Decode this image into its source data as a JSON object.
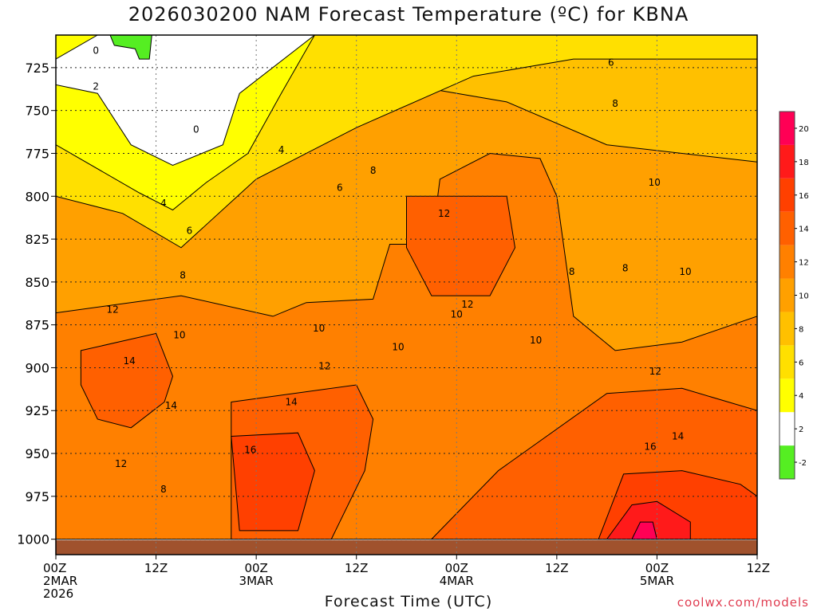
{
  "title": "2026030200 NAM Forecast Temperature (ºC) for KBNA",
  "xlabel": "Forecast Time (UTC)",
  "credit": "coolwx.com/models",
  "chart_data": {
    "type": "heatmap",
    "title": "2026030200 NAM Forecast Temperature (ºC) for KBNA",
    "xlabel": "Forecast Time (UTC)",
    "ylabel": "",
    "y_axis": {
      "ticks": [
        725,
        750,
        775,
        800,
        825,
        850,
        875,
        900,
        925,
        950,
        975,
        1000
      ],
      "range": [
        706,
        1009
      ],
      "inverted": true,
      "grid": true
    },
    "x_axis": {
      "ticks": [
        {
          "hour": 0,
          "lines": [
            "00Z",
            "2MAR",
            "2026"
          ]
        },
        {
          "hour": 12,
          "lines": [
            "12Z"
          ]
        },
        {
          "hour": 24,
          "lines": [
            "00Z",
            "3MAR"
          ]
        },
        {
          "hour": 36,
          "lines": [
            "12Z"
          ]
        },
        {
          "hour": 48,
          "lines": [
            "00Z",
            "4MAR"
          ]
        },
        {
          "hour": 60,
          "lines": [
            "12Z"
          ]
        },
        {
          "hour": 72,
          "lines": [
            "00Z",
            "5MAR"
          ]
        },
        {
          "hour": 84,
          "lines": [
            "12Z"
          ]
        }
      ],
      "range": [
        0,
        84
      ],
      "grid": true
    },
    "colorbar": {
      "levels": [
        -2,
        2,
        4,
        6,
        8,
        10,
        12,
        14,
        16,
        18,
        20
      ],
      "colors": [
        "#55ee22",
        "#ffffff",
        "#ffff00",
        "#ffe000",
        "#ffc000",
        "#ffa000",
        "#ff8000",
        "#ff6000",
        "#ff4000",
        "#ff1a1a",
        "#ff0055"
      ]
    },
    "regions": [
      {
        "value": 10,
        "color": "#ffa000",
        "points": [
          [
            0,
            706
          ],
          [
            84,
            706
          ],
          [
            84,
            1000
          ],
          [
            0,
            1000
          ]
        ]
      },
      {
        "value": 8,
        "color": "#ffc000",
        "points": [
          [
            0,
            706
          ],
          [
            28,
            706
          ],
          [
            42,
            735
          ],
          [
            54,
            745
          ],
          [
            66,
            770
          ],
          [
            84,
            780
          ],
          [
            84,
            706
          ]
        ]
      },
      {
        "value": 6,
        "color": "#ffe000",
        "points": [
          [
            0,
            706
          ],
          [
            84,
            706
          ],
          [
            84,
            720
          ],
          [
            62,
            720
          ],
          [
            50,
            730
          ],
          [
            36,
            760
          ],
          [
            24,
            790
          ],
          [
            15,
            830
          ],
          [
            8,
            810
          ],
          [
            0,
            800
          ]
        ]
      },
      {
        "value": 4,
        "color": "#ffff00",
        "points": [
          [
            0,
            706
          ],
          [
            31,
            706
          ],
          [
            27,
            740
          ],
          [
            23,
            775
          ],
          [
            18,
            792
          ],
          [
            14,
            808
          ],
          [
            10,
            798
          ],
          [
            0,
            770
          ]
        ]
      },
      {
        "value": 2,
        "color": "#ffffff",
        "points": [
          [
            5,
            706
          ],
          [
            31,
            706
          ],
          [
            22,
            740
          ],
          [
            20,
            770
          ],
          [
            14,
            782
          ],
          [
            9,
            770
          ],
          [
            5,
            740
          ],
          [
            0,
            735
          ],
          [
            0,
            720
          ]
        ]
      },
      {
        "value": -2,
        "color": "#55ee22",
        "points": [
          [
            6.5,
            706
          ],
          [
            11.5,
            706
          ],
          [
            11.2,
            720
          ],
          [
            10,
            720
          ],
          [
            9.5,
            714
          ],
          [
            7,
            712
          ]
        ]
      },
      {
        "value": 12,
        "color": "#ff8000",
        "points": [
          [
            0,
            868
          ],
          [
            15,
            858
          ],
          [
            26,
            870
          ],
          [
            30,
            862
          ],
          [
            38,
            860
          ],
          [
            40,
            828
          ],
          [
            45,
            828
          ],
          [
            46,
            790
          ],
          [
            52,
            775
          ],
          [
            58,
            778
          ],
          [
            60,
            800
          ],
          [
            62,
            870
          ],
          [
            67,
            890
          ],
          [
            75,
            885
          ],
          [
            84,
            870
          ],
          [
            84,
            1000
          ],
          [
            0,
            1000
          ]
        ]
      },
      {
        "value": 14,
        "color": "#ff6000",
        "points": [
          [
            3,
            890
          ],
          [
            12,
            880
          ],
          [
            14,
            905
          ],
          [
            13,
            920
          ],
          [
            9,
            935
          ],
          [
            5,
            930
          ],
          [
            3,
            910
          ]
        ]
      },
      {
        "value": 14,
        "color": "#ff6000",
        "points": [
          [
            21,
            920
          ],
          [
            36,
            910
          ],
          [
            38,
            930
          ],
          [
            37,
            960
          ],
          [
            33,
            1000
          ],
          [
            21,
            1000
          ]
        ]
      },
      {
        "value": 14,
        "color": "#ff6000",
        "points": [
          [
            45,
            1000
          ],
          [
            53,
            960
          ],
          [
            66,
            915
          ],
          [
            75,
            912
          ],
          [
            84,
            925
          ],
          [
            84,
            1000
          ]
        ]
      },
      {
        "value": 14,
        "color": "#ff6000",
        "points": [
          [
            42,
            800
          ],
          [
            54,
            800
          ],
          [
            55,
            830
          ],
          [
            52,
            858
          ],
          [
            45,
            858
          ],
          [
            42,
            830
          ]
        ]
      },
      {
        "value": 16,
        "color": "#ff4000",
        "points": [
          [
            21,
            940
          ],
          [
            29,
            938
          ],
          [
            31,
            960
          ],
          [
            29,
            995
          ],
          [
            22,
            995
          ]
        ]
      },
      {
        "value": 16,
        "color": "#ff4000",
        "points": [
          [
            65,
            1000
          ],
          [
            68,
            962
          ],
          [
            75,
            960
          ],
          [
            82,
            968
          ],
          [
            84,
            975
          ],
          [
            84,
            1000
          ]
        ]
      },
      {
        "value": 18,
        "color": "#ff1a1a",
        "points": [
          [
            66,
            1000
          ],
          [
            69,
            980
          ],
          [
            72,
            978
          ],
          [
            76,
            990
          ],
          [
            76,
            1000
          ]
        ]
      },
      {
        "value": 20,
        "color": "#ff0055",
        "points": [
          [
            69,
            1000
          ],
          [
            70,
            990
          ],
          [
            71.5,
            990
          ],
          [
            72,
            1000
          ]
        ]
      }
    ],
    "contour_labels": [
      {
        "x": 4.8,
        "y": 715,
        "text": "0"
      },
      {
        "x": 16.8,
        "y": 761,
        "text": "0"
      },
      {
        "x": 4.8,
        "y": 736,
        "text": "2"
      },
      {
        "x": 27,
        "y": 773,
        "text": "4"
      },
      {
        "x": 12.9,
        "y": 804,
        "text": "4"
      },
      {
        "x": 16,
        "y": 820,
        "text": "6"
      },
      {
        "x": 34,
        "y": 795,
        "text": "6"
      },
      {
        "x": 15.2,
        "y": 846,
        "text": "8"
      },
      {
        "x": 38,
        "y": 785,
        "text": "8"
      },
      {
        "x": 67,
        "y": 746,
        "text": "8"
      },
      {
        "x": 61.8,
        "y": 844,
        "text": "8"
      },
      {
        "x": 68.2,
        "y": 842,
        "text": "8"
      },
      {
        "x": 66.5,
        "y": 722,
        "text": "6"
      },
      {
        "x": 14.8,
        "y": 881,
        "text": "10"
      },
      {
        "x": 31.5,
        "y": 877,
        "text": "10"
      },
      {
        "x": 41,
        "y": 888,
        "text": "10"
      },
      {
        "x": 48,
        "y": 869,
        "text": "10"
      },
      {
        "x": 57.5,
        "y": 884,
        "text": "10"
      },
      {
        "x": 71.7,
        "y": 792,
        "text": "10"
      },
      {
        "x": 75.4,
        "y": 844,
        "text": "10"
      },
      {
        "x": 6.8,
        "y": 866,
        "text": "12"
      },
      {
        "x": 32.2,
        "y": 899,
        "text": "12"
      },
      {
        "x": 46.5,
        "y": 810,
        "text": "12"
      },
      {
        "x": 49.3,
        "y": 863,
        "text": "12"
      },
      {
        "x": 71.8,
        "y": 902,
        "text": "12"
      },
      {
        "x": 7.8,
        "y": 956,
        "text": "12"
      },
      {
        "x": 8.8,
        "y": 896,
        "text": "14"
      },
      {
        "x": 13.8,
        "y": 922,
        "text": "14"
      },
      {
        "x": 28.2,
        "y": 920,
        "text": "14"
      },
      {
        "x": 74.5,
        "y": 940,
        "text": "14"
      },
      {
        "x": 23.3,
        "y": 948,
        "text": "16"
      },
      {
        "x": 71.2,
        "y": 946,
        "text": "16"
      },
      {
        "x": 12.9,
        "y": 971,
        "text": "8"
      }
    ]
  }
}
